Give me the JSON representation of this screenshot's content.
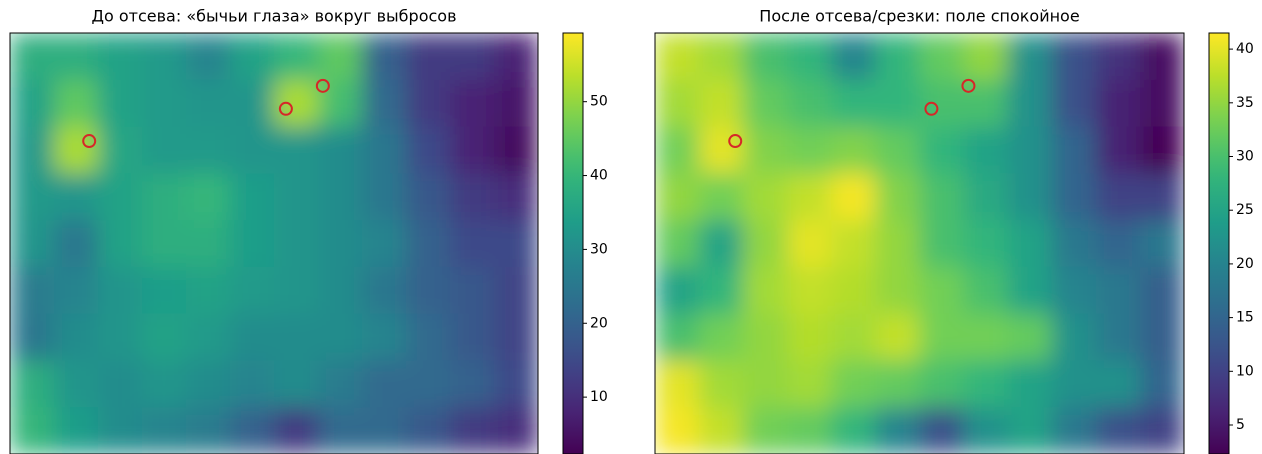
{
  "chart_data": [
    {
      "type": "heatmap",
      "title": "До отсева: «бычьи глаза» вокруг выбросов",
      "colormap": "viridis",
      "clim": [
        2.3,
        59.3
      ],
      "cticks": [
        10,
        20,
        30,
        40,
        50
      ],
      "values": [
        [
          38,
          38,
          35,
          33,
          28,
          35,
          40,
          45,
          20,
          12,
          12,
          8
        ],
        [
          35,
          45,
          35,
          33,
          32,
          32,
          52,
          42,
          22,
          12,
          8,
          6
        ],
        [
          33,
          52,
          36,
          33,
          33,
          32,
          32,
          30,
          25,
          15,
          8,
          4
        ],
        [
          33,
          32,
          35,
          38,
          40,
          34,
          32,
          30,
          25,
          18,
          12,
          10
        ],
        [
          32,
          25,
          35,
          38,
          38,
          34,
          32,
          30,
          28,
          20,
          15,
          15
        ],
        [
          26,
          28,
          32,
          34,
          35,
          33,
          32,
          30,
          25,
          20,
          18,
          14
        ],
        [
          25,
          30,
          32,
          35,
          33,
          30,
          30,
          30,
          28,
          22,
          18,
          14
        ],
        [
          38,
          32,
          30,
          32,
          30,
          28,
          30,
          26,
          22,
          22,
          20,
          15
        ],
        [
          40,
          34,
          30,
          28,
          26,
          20,
          12,
          22,
          22,
          18,
          12,
          10
        ]
      ],
      "markers": {
        "color": "#d62728",
        "x": [
          1.8,
          6.27,
          7.11
        ],
        "y": [
          2.31,
          1.62,
          1.13
        ]
      }
    },
    {
      "type": "heatmap",
      "title": "После отсева/срезки: поле спокойное",
      "colormap": "viridis",
      "clim": [
        2.3,
        41.5
      ],
      "cticks": [
        5,
        10,
        15,
        20,
        25,
        30,
        35,
        40
      ],
      "values": [
        [
          38,
          36,
          30,
          28,
          20,
          28,
          32,
          35,
          22,
          12,
          8,
          4
        ],
        [
          36,
          38,
          32,
          30,
          28,
          28,
          30,
          30,
          22,
          12,
          6,
          4
        ],
        [
          33,
          40,
          34,
          33,
          34,
          32,
          28,
          25,
          22,
          15,
          6,
          2
        ],
        [
          35,
          33,
          36,
          38,
          41,
          34,
          30,
          26,
          22,
          15,
          10,
          10
        ],
        [
          32,
          25,
          35,
          40,
          38,
          35,
          30,
          28,
          25,
          18,
          15,
          18
        ],
        [
          25,
          28,
          36,
          38,
          37,
          35,
          33,
          30,
          25,
          20,
          18,
          14
        ],
        [
          30,
          33,
          35,
          37,
          36,
          38,
          33,
          33,
          32,
          22,
          18,
          14
        ],
        [
          40,
          36,
          35,
          36,
          33,
          32,
          30,
          28,
          25,
          22,
          22,
          15
        ],
        [
          41,
          38,
          33,
          32,
          28,
          20,
          12,
          22,
          25,
          18,
          12,
          10
        ]
      ],
      "markers": {
        "color": "#d62728",
        "x": [
          1.82,
          6.27,
          7.11
        ],
        "y": [
          2.31,
          1.62,
          1.13
        ]
      }
    }
  ]
}
